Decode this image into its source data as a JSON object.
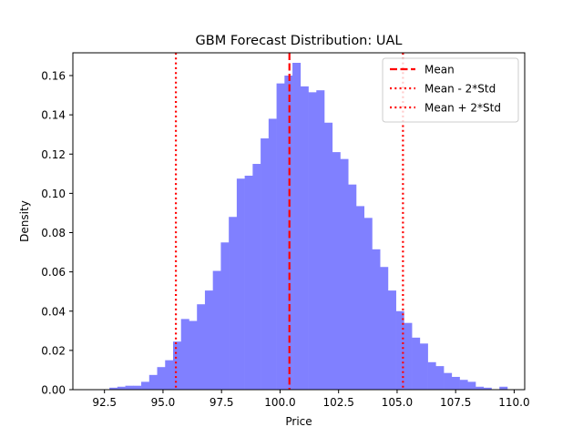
{
  "chart_data": {
    "type": "bar",
    "title": "GBM Forecast Distribution: UAL",
    "xlabel": "Price",
    "ylabel": "Density",
    "xlim": [
      91.15,
      110.45
    ],
    "ylim": [
      0,
      0.1716
    ],
    "x_ticks": [
      92.5,
      95.0,
      97.5,
      100.0,
      102.5,
      105.0,
      107.5,
      110.0
    ],
    "x_tick_labels": [
      "92.5",
      "95.0",
      "97.5",
      "100.0",
      "102.5",
      "105.0",
      "107.5",
      "110.0"
    ],
    "y_ticks": [
      0.0,
      0.02,
      0.04,
      0.06,
      0.08,
      0.1,
      0.12,
      0.14,
      0.16
    ],
    "y_tick_labels": [
      "0.00",
      "0.02",
      "0.04",
      "0.06",
      "0.08",
      "0.10",
      "0.12",
      "0.14",
      "0.16"
    ],
    "grid": false,
    "histogram": {
      "bin_start": 92.03,
      "bin_width": 0.34,
      "color": "#8080ff",
      "values": [
        0.0,
        0.0,
        0.001,
        0.0015,
        0.002,
        0.002,
        0.004,
        0.0075,
        0.0115,
        0.015,
        0.0245,
        0.036,
        0.035,
        0.0435,
        0.0505,
        0.0605,
        0.075,
        0.088,
        0.1075,
        0.109,
        0.115,
        0.128,
        0.138,
        0.156,
        0.16,
        0.1665,
        0.1545,
        0.1515,
        0.1525,
        0.136,
        0.121,
        0.1175,
        0.1045,
        0.0935,
        0.0875,
        0.0715,
        0.0625,
        0.0505,
        0.04,
        0.034,
        0.0265,
        0.0235,
        0.014,
        0.012,
        0.0085,
        0.0065,
        0.005,
        0.004,
        0.0015,
        0.001,
        0.0,
        0.0015
      ]
    },
    "lines": [
      {
        "name": "Mean",
        "x": 100.4,
        "color": "#ff0000",
        "style": "dashed"
      },
      {
        "name": "Mean - 2*Std",
        "x": 95.55,
        "color": "#ff0000",
        "style": "dotted"
      },
      {
        "name": "Mean + 2*Std",
        "x": 105.25,
        "color": "#ff0000",
        "style": "dotted"
      }
    ],
    "legend_position": "top-right"
  }
}
